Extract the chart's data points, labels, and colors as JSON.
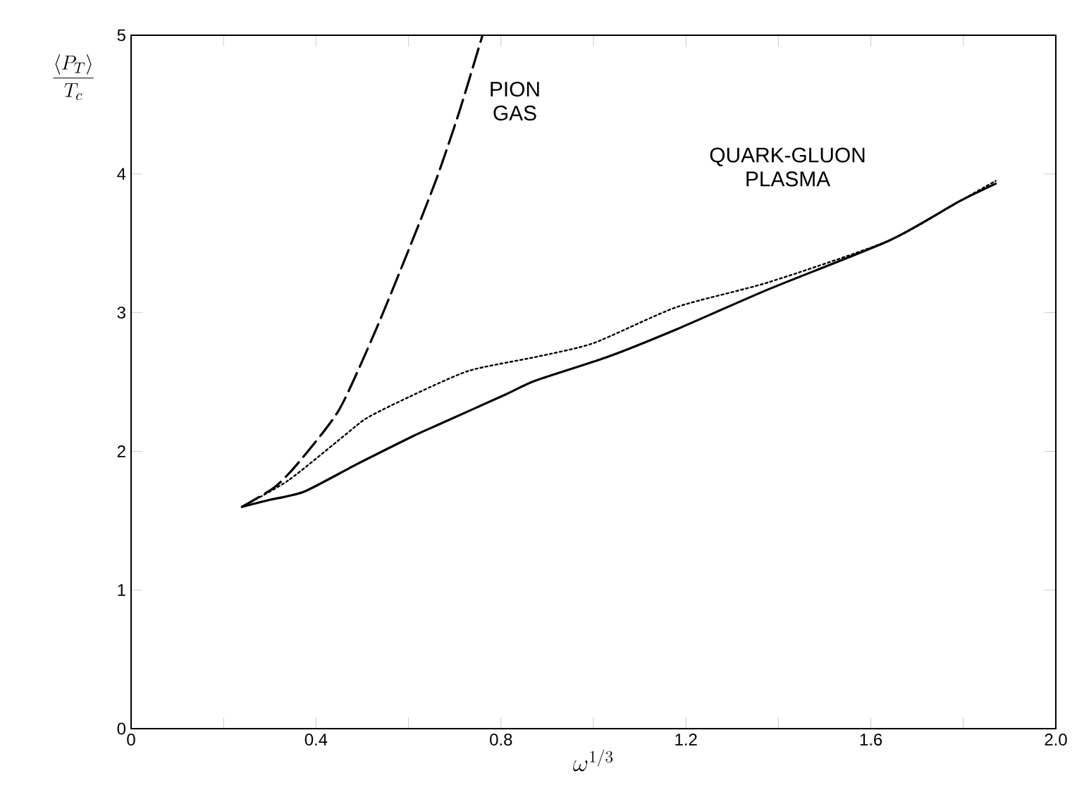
{
  "chart_data": {
    "type": "line",
    "xlabel": "\\omega^{1/3}",
    "ylabel": "\\frac{\\langle P_T \\rangle}{T_c}",
    "xlim": [
      0,
      2.0
    ],
    "ylim": [
      0,
      5
    ],
    "xticks": [
      0,
      {
        "value": 0.2,
        "label": null
      },
      0.4,
      {
        "value": 0.6,
        "label": null
      },
      0.8,
      {
        "value": 1.0,
        "label": null
      },
      1.2,
      {
        "value": 1.4,
        "label": null
      },
      1.6,
      {
        "value": 1.8,
        "label": null
      },
      {
        "value": 2.0,
        "label": "2.0"
      }
    ],
    "yticks": [
      0,
      1,
      2,
      3,
      4,
      5
    ],
    "grid": false,
    "marker": "none",
    "series": [
      {
        "color": "#000000",
        "line_style": "solid",
        "x": [
          0.24,
          0.3,
          0.375,
          0.49,
          0.61,
          0.67,
          0.81,
          0.875,
          1.03,
          1.18,
          1.38,
          1.64,
          1.79,
          1.87
        ],
        "values": [
          1.6,
          1.65,
          1.71,
          1.91,
          2.11,
          2.2,
          2.41,
          2.51,
          2.68,
          2.88,
          3.17,
          3.52,
          3.8,
          3.93
        ]
      },
      {
        "color": "#000000",
        "line_style": "dotted",
        "x": [
          0.24,
          0.34,
          0.46,
          0.51,
          0.6,
          0.73,
          0.875,
          1.0,
          1.18,
          1.38,
          1.64,
          1.79,
          1.87
        ],
        "values": [
          1.6,
          1.79,
          2.11,
          2.24,
          2.39,
          2.58,
          2.68,
          2.78,
          3.04,
          3.22,
          3.52,
          3.8,
          3.95
        ]
      },
      {
        "color": "#000000",
        "line_style": "dashed",
        "x": [
          0.24,
          0.31,
          0.36,
          0.45,
          0.53,
          0.6,
          0.66,
          0.71,
          0.76
        ],
        "values": [
          1.6,
          1.74,
          1.91,
          2.3,
          2.88,
          3.45,
          3.96,
          4.45,
          5.0
        ]
      }
    ],
    "annotations": [
      "PION GAS",
      "QUARK-GLUON PLASMA"
    ]
  }
}
